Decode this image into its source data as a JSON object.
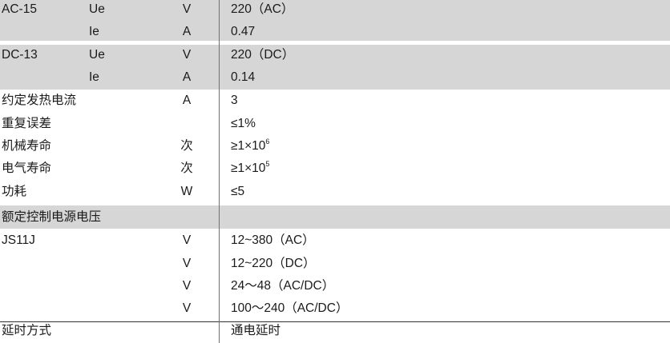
{
  "rows": [
    {
      "c1": "AC-15",
      "c2": "Ue",
      "c3": "V",
      "c4": "220（AC）"
    },
    {
      "c1": "",
      "c2": "Ie",
      "c3": "A",
      "c4": "0.47"
    },
    {
      "c1": "DC-13",
      "c2": "Ue",
      "c3": "V",
      "c4": "220（DC）"
    },
    {
      "c1": "",
      "c2": "Ie",
      "c3": "A",
      "c4": "0.14"
    },
    {
      "c1": "约定发热电流",
      "c2": "",
      "c3": "A",
      "c4": "3"
    },
    {
      "c1": "重复误差",
      "c2": "",
      "c3": "",
      "c4": "≤1%"
    },
    {
      "c1": "机械寿命",
      "c2": "",
      "c3": "次",
      "c4": "≥1×10",
      "sup": "6"
    },
    {
      "c1": "电气寿命",
      "c2": "",
      "c3": "次",
      "c4": "≥1×10",
      "sup": "5"
    },
    {
      "c1": "功耗",
      "c2": "",
      "c3": "W",
      "c4": "≤5"
    },
    {
      "c1": "额定控制电源电压",
      "c2": "",
      "c3": "",
      "c4": ""
    },
    {
      "c1": "JS11J",
      "c2": "",
      "c3": "V",
      "c4": "12~380（AC）"
    },
    {
      "c1": "",
      "c2": "",
      "c3": "V",
      "c4": "12~220（DC）"
    },
    {
      "c1": "",
      "c2": "",
      "c3": "V",
      "c4": "24～48（AC/DC）"
    },
    {
      "c1": "",
      "c2": "",
      "c3": "V",
      "c4": "100～240（AC/DC）"
    },
    {
      "c1": "延时方式",
      "c2": "",
      "c3": "",
      "c4": "通电延时"
    }
  ],
  "colors": {
    "band": "#d6d6d6",
    "divider": "#c0504d"
  }
}
